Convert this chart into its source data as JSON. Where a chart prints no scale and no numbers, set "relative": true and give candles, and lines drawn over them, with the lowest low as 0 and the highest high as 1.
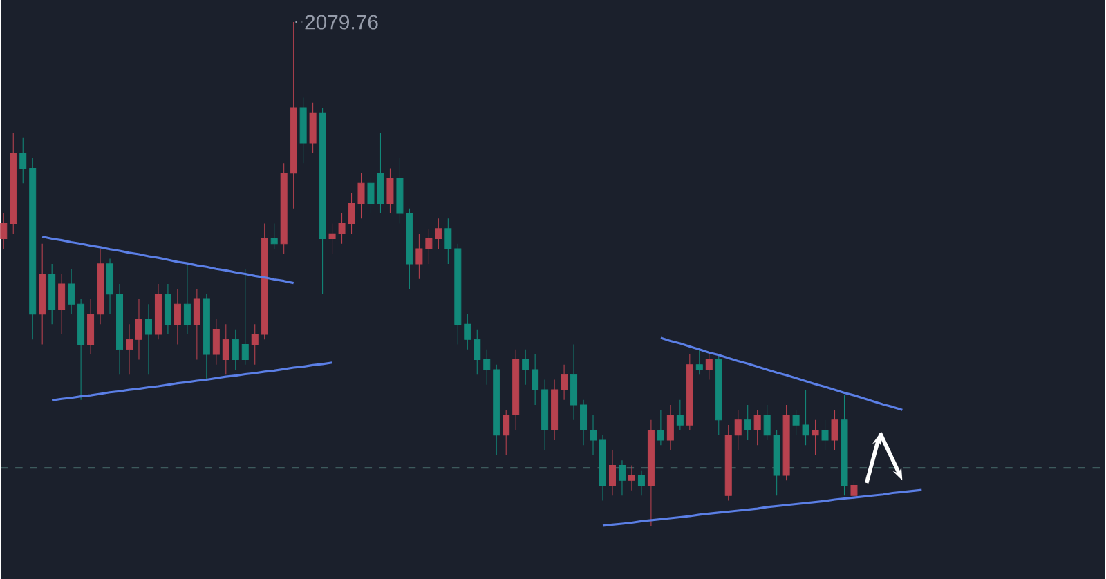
{
  "chart_data": {
    "type": "candlestick",
    "relative": true,
    "categories": [
      null,
      null,
      null,
      null,
      null,
      null,
      null,
      null,
      null,
      null,
      null,
      null,
      null,
      null,
      null,
      null,
      null,
      null,
      null,
      null,
      null,
      null,
      null,
      null,
      null,
      null,
      null,
      null,
      null,
      null,
      null,
      null,
      null,
      null,
      null,
      null,
      null,
      null,
      null,
      null,
      null,
      null,
      null,
      null,
      null,
      null,
      null,
      null,
      null,
      null,
      null,
      null,
      null,
      null,
      null,
      null,
      null,
      null,
      null,
      null,
      null,
      null,
      null,
      null,
      null,
      null,
      null,
      null,
      null,
      null,
      null,
      null,
      null,
      null,
      null,
      null,
      null,
      null,
      null,
      null,
      null,
      null,
      null,
      null,
      null,
      null,
      null,
      null,
      null,
      null,
      null,
      null,
      null,
      null,
      null,
      null
    ],
    "colors": [
      "#b8424f",
      "#b8424f",
      "#12897a",
      "#12897a",
      "#b8424f",
      "#12897a",
      "#b8424f",
      "#12897a",
      "#12897a",
      "#b8424f",
      "#b8424f",
      "#12897a",
      "#12897a",
      "#b8424f",
      "#b8424f",
      "#12897a",
      "#b8424f",
      "#12897a",
      "#b8424f",
      "#12897a",
      "#b8424f",
      "#12897a",
      "#b8424f",
      "#b8424f",
      "#12897a",
      "#12897a",
      "#b8424f",
      "#b8424f",
      "#12897a",
      "#b8424f",
      "#b8424f",
      "#12897a",
      "#b8424f",
      "#12897a",
      "#b8424f",
      "#b8424f",
      "#b8424f",
      "#b8424f",
      "#12897a",
      "#12897a",
      "#b8424f",
      "#12897a",
      "#12897a",
      "#b8424f",
      "#b8424f",
      "#b8424f",
      "#12897a",
      "#12897a",
      "#12897a",
      "#12897a",
      "#12897a",
      "#12897a",
      "#b8424f",
      "#b8424f",
      "#12897a",
      "#12897a",
      "#12897a",
      "#b8424f",
      "#b8424f",
      "#12897a",
      "#12897a",
      "#12897a",
      "#12897a",
      "#b8424f",
      "#12897a",
      "#b8424f",
      "#12897a",
      "#b8424f",
      "#12897a",
      "#b8424f",
      "#12897a",
      "#b8424f",
      "#12897a",
      "#b8424f",
      "#12897a",
      "#b8424f",
      "#b8424f",
      "#12897a",
      "#b8424f",
      "#12897a",
      "#12897a",
      "#b8424f",
      "#12897a",
      "#12897a",
      "#b8424f",
      "#12897a",
      "#b8424f",
      "#12897a",
      "#b8424f",
      null,
      null,
      null,
      null,
      null,
      null,
      null
    ],
    "ohlc": [
      [
        0.57,
        0.62,
        0.55,
        0.6
      ],
      [
        0.6,
        0.78,
        0.58,
        0.74
      ],
      [
        0.74,
        0.77,
        0.68,
        0.71
      ],
      [
        0.71,
        0.73,
        0.37,
        0.42
      ],
      [
        0.42,
        0.56,
        0.36,
        0.5
      ],
      [
        0.5,
        0.52,
        0.4,
        0.43
      ],
      [
        0.43,
        0.5,
        0.38,
        0.48
      ],
      [
        0.48,
        0.51,
        0.42,
        0.44
      ],
      [
        0.44,
        0.45,
        0.25,
        0.36
      ],
      [
        0.36,
        0.45,
        0.34,
        0.42
      ],
      [
        0.42,
        0.55,
        0.4,
        0.52
      ],
      [
        0.52,
        0.53,
        0.42,
        0.46
      ],
      [
        0.46,
        0.48,
        0.3,
        0.35
      ],
      [
        0.35,
        0.4,
        0.3,
        0.37
      ],
      [
        0.37,
        0.45,
        0.33,
        0.41
      ],
      [
        0.41,
        0.44,
        0.3,
        0.38
      ],
      [
        0.38,
        0.48,
        0.37,
        0.46
      ],
      [
        0.46,
        0.48,
        0.38,
        0.4
      ],
      [
        0.4,
        0.47,
        0.36,
        0.44
      ],
      [
        0.44,
        0.52,
        0.38,
        0.4
      ],
      [
        0.4,
        0.47,
        0.33,
        0.45
      ],
      [
        0.45,
        0.46,
        0.29,
        0.34
      ],
      [
        0.34,
        0.41,
        0.32,
        0.39
      ],
      [
        0.33,
        0.4,
        0.3,
        0.37
      ],
      [
        0.37,
        0.39,
        0.31,
        0.33
      ],
      [
        0.36,
        0.51,
        0.32,
        0.33
      ],
      [
        0.36,
        0.4,
        0.32,
        0.38
      ],
      [
        0.38,
        0.6,
        0.37,
        0.57
      ],
      [
        0.57,
        0.6,
        0.55,
        0.56
      ],
      [
        0.56,
        0.72,
        0.54,
        0.7
      ],
      [
        0.7,
        1.0,
        0.63,
        0.83
      ],
      [
        0.83,
        0.85,
        0.72,
        0.76
      ],
      [
        0.76,
        0.84,
        0.74,
        0.82
      ],
      [
        0.82,
        0.83,
        0.46,
        0.57
      ],
      [
        0.57,
        0.6,
        0.54,
        0.58
      ],
      [
        0.58,
        0.62,
        0.56,
        0.6
      ],
      [
        0.6,
        0.66,
        0.58,
        0.64
      ],
      [
        0.64,
        0.7,
        0.61,
        0.68
      ],
      [
        0.68,
        0.69,
        0.62,
        0.64
      ],
      [
        0.7,
        0.78,
        0.62,
        0.64
      ],
      [
        0.64,
        0.71,
        0.62,
        0.69
      ],
      [
        0.69,
        0.73,
        0.6,
        0.62
      ],
      [
        0.62,
        0.63,
        0.47,
        0.52
      ],
      [
        0.52,
        0.58,
        0.49,
        0.55
      ],
      [
        0.55,
        0.59,
        0.52,
        0.57
      ],
      [
        0.57,
        0.61,
        0.55,
        0.59
      ],
      [
        0.59,
        0.61,
        0.52,
        0.55
      ],
      [
        0.55,
        0.56,
        0.36,
        0.4
      ],
      [
        0.4,
        0.42,
        0.35,
        0.37
      ],
      [
        0.37,
        0.39,
        0.3,
        0.33
      ],
      [
        0.33,
        0.35,
        0.28,
        0.31
      ],
      [
        0.31,
        0.32,
        0.14,
        0.18
      ],
      [
        0.18,
        0.23,
        0.14,
        0.22
      ],
      [
        0.22,
        0.35,
        0.19,
        0.33
      ],
      [
        0.33,
        0.35,
        0.28,
        0.31
      ],
      [
        0.31,
        0.34,
        0.24,
        0.27
      ],
      [
        0.27,
        0.29,
        0.15,
        0.19
      ],
      [
        0.19,
        0.29,
        0.17,
        0.27
      ],
      [
        0.27,
        0.32,
        0.25,
        0.3
      ],
      [
        0.3,
        0.36,
        0.21,
        0.24
      ],
      [
        0.24,
        0.25,
        0.16,
        0.19
      ],
      [
        0.19,
        0.22,
        0.14,
        0.17
      ],
      [
        0.17,
        0.18,
        0.05,
        0.08
      ],
      [
        0.08,
        0.15,
        0.06,
        0.12
      ],
      [
        0.12,
        0.13,
        0.06,
        0.09
      ],
      [
        0.09,
        0.12,
        0.07,
        0.1
      ],
      [
        0.1,
        0.11,
        0.06,
        0.08
      ],
      [
        0.08,
        0.21,
        0.0,
        0.19
      ],
      [
        0.19,
        0.23,
        0.16,
        0.17
      ],
      [
        0.17,
        0.24,
        0.15,
        0.22
      ],
      [
        0.22,
        0.25,
        0.19,
        0.2
      ],
      [
        0.2,
        0.34,
        0.19,
        0.32
      ],
      [
        0.32,
        0.35,
        0.3,
        0.31
      ],
      [
        0.31,
        0.34,
        0.29,
        0.33
      ],
      [
        0.33,
        0.34,
        0.18,
        0.21
      ],
      [
        0.06,
        0.2,
        0.05,
        0.18
      ],
      [
        0.18,
        0.23,
        0.15,
        0.21
      ],
      [
        0.21,
        0.24,
        0.17,
        0.19
      ],
      [
        0.19,
        0.23,
        0.16,
        0.22
      ],
      [
        0.22,
        0.24,
        0.17,
        0.18
      ],
      [
        0.18,
        0.19,
        0.06,
        0.1
      ],
      [
        0.1,
        0.24,
        0.09,
        0.22
      ],
      [
        0.22,
        0.23,
        0.18,
        0.2
      ],
      [
        0.2,
        0.27,
        0.16,
        0.18
      ],
      [
        0.18,
        0.21,
        0.14,
        0.19
      ],
      [
        0.19,
        0.21,
        0.15,
        0.17
      ],
      [
        0.17,
        0.23,
        0.15,
        0.21
      ],
      [
        0.21,
        0.26,
        0.06,
        0.08
      ],
      [
        0.06,
        0.09,
        0.05,
        0.08
      ],
      null,
      null,
      null,
      null,
      null,
      null,
      null
    ],
    "series": [
      {
        "type": "line",
        "color": "#5b7fe6",
        "values": [
          null,
          null,
          null,
          null,
          0.574,
          0.57,
          0.567,
          0.563,
          0.56,
          0.556,
          0.553,
          0.549,
          0.546,
          0.542,
          0.539,
          0.535,
          0.532,
          0.528,
          0.524,
          0.521,
          0.517,
          0.514,
          0.51,
          0.507,
          0.503,
          0.5,
          0.496,
          0.493,
          0.489,
          0.486,
          0.482,
          null,
          null,
          null,
          null,
          null,
          null,
          null,
          null,
          null,
          null,
          null,
          null,
          null,
          null,
          null,
          null,
          null,
          null,
          null,
          null,
          null,
          null,
          null,
          null,
          null,
          null,
          null,
          null,
          null,
          null,
          null,
          null,
          null,
          null,
          null,
          null,
          null,
          null,
          null,
          null,
          null,
          null,
          null,
          null,
          null,
          null,
          null,
          null,
          null,
          null,
          null,
          null,
          null,
          null,
          null,
          null,
          null,
          null,
          null,
          null,
          null,
          null,
          null,
          null,
          null
        ]
      },
      {
        "type": "line",
        "color": "#5b7fe6",
        "values": [
          null,
          null,
          null,
          null,
          null,
          0.249,
          0.252,
          0.254,
          0.257,
          0.259,
          0.262,
          0.265,
          0.267,
          0.27,
          0.272,
          0.275,
          0.277,
          0.28,
          0.283,
          0.285,
          0.288,
          0.29,
          0.293,
          0.296,
          0.298,
          0.301,
          0.303,
          0.306,
          0.308,
          0.311,
          0.314,
          0.316,
          0.319,
          0.321,
          0.324,
          null,
          null,
          null,
          null,
          null,
          null,
          null,
          null,
          null,
          null,
          null,
          null,
          null,
          null,
          null,
          null,
          null,
          null,
          null,
          null,
          null,
          null,
          null,
          null,
          null,
          null,
          null,
          null,
          null,
          null,
          null,
          null,
          null,
          null,
          null,
          null,
          null,
          null,
          null,
          null,
          null,
          null,
          null,
          null,
          null,
          null,
          null,
          null,
          null,
          null,
          null,
          null,
          null,
          null,
          null,
          null,
          null,
          null,
          null,
          null,
          null
        ]
      },
      {
        "type": "line",
        "color": "#5b7fe6",
        "values": [
          null,
          null,
          null,
          null,
          null,
          null,
          null,
          null,
          null,
          null,
          null,
          null,
          null,
          null,
          null,
          null,
          null,
          null,
          null,
          null,
          null,
          null,
          null,
          null,
          null,
          null,
          null,
          null,
          null,
          null,
          null,
          null,
          null,
          null,
          null,
          null,
          null,
          null,
          null,
          null,
          null,
          null,
          null,
          null,
          null,
          null,
          null,
          null,
          null,
          null,
          null,
          null,
          null,
          null,
          null,
          null,
          null,
          null,
          null,
          null,
          null,
          null,
          null,
          null,
          null,
          null,
          null,
          null,
          0.373,
          0.367,
          0.362,
          0.356,
          0.35,
          0.344,
          0.339,
          0.333,
          0.327,
          0.322,
          0.316,
          0.31,
          0.304,
          0.299,
          0.293,
          0.287,
          0.281,
          0.276,
          0.27,
          0.264,
          0.259,
          0.253,
          0.247,
          0.241,
          0.236,
          0.23,
          null,
          null
        ]
      },
      {
        "type": "line",
        "color": "#5b7fe6",
        "values": [
          null,
          null,
          null,
          null,
          null,
          null,
          null,
          null,
          null,
          null,
          null,
          null,
          null,
          null,
          null,
          null,
          null,
          null,
          null,
          null,
          null,
          null,
          null,
          null,
          null,
          null,
          null,
          null,
          null,
          null,
          null,
          null,
          null,
          null,
          null,
          null,
          null,
          null,
          null,
          null,
          null,
          null,
          null,
          null,
          null,
          null,
          null,
          null,
          null,
          null,
          null,
          null,
          null,
          null,
          null,
          null,
          null,
          null,
          null,
          null,
          null,
          null,
          0.0,
          0.002,
          0.004,
          0.006,
          0.009,
          0.011,
          0.013,
          0.015,
          0.017,
          0.019,
          0.022,
          0.024,
          0.026,
          0.028,
          0.03,
          0.032,
          0.034,
          0.037,
          0.039,
          0.041,
          0.043,
          0.045,
          0.047,
          0.049,
          0.052,
          0.054,
          0.056,
          0.058,
          0.06,
          0.062,
          0.065,
          0.067,
          0.069,
          0.071
        ]
      }
    ],
    "ref_lines": [
      {
        "axis": "y",
        "value": 0.115,
        "color": "#3d5a5c",
        "line_style": "dashed"
      }
    ],
    "annotations": [
      "2079.76"
    ]
  }
}
